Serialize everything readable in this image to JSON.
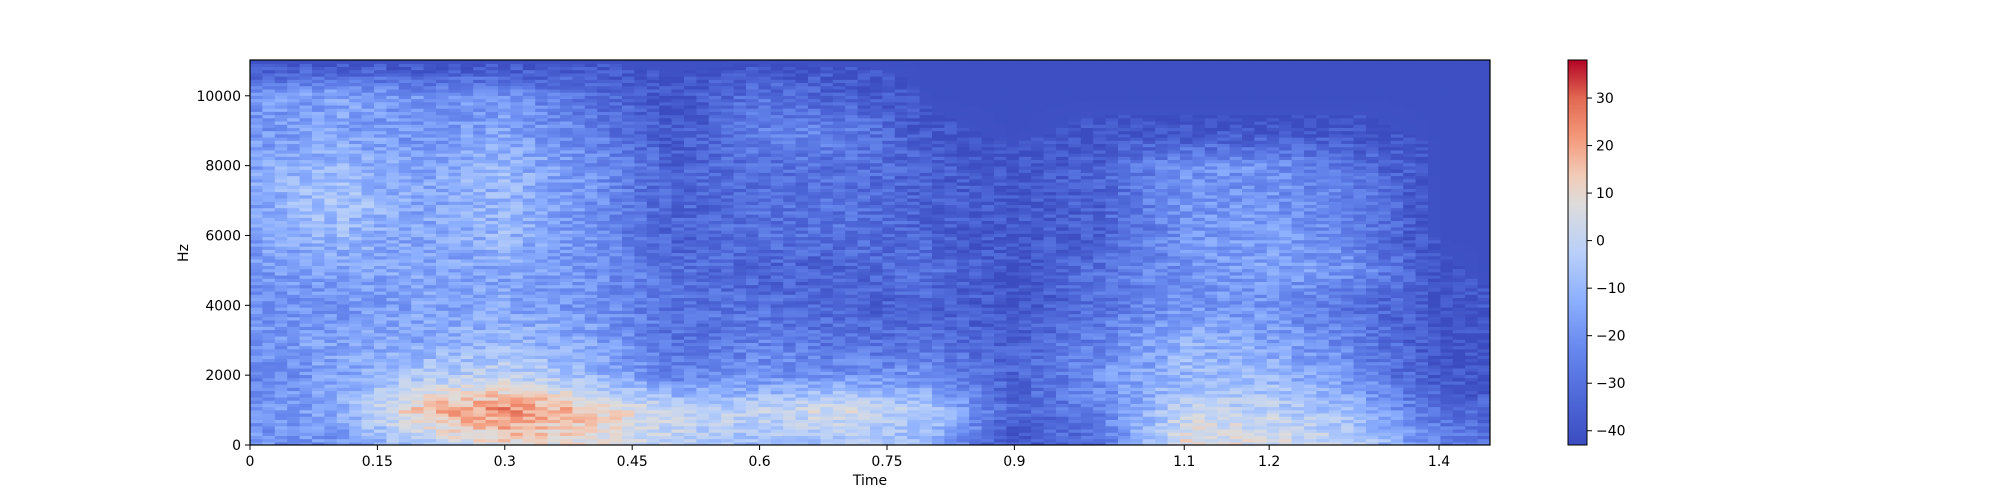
{
  "chart_data": {
    "type": "heatmap",
    "title": "",
    "xlabel": "Time",
    "ylabel": "Hz",
    "xlim": [
      0,
      1.46
    ],
    "ylim": [
      0,
      11025
    ],
    "x_ticks": [
      "0",
      "0.15",
      "0.3",
      "0.45",
      "0.6",
      "0.75",
      "0.9",
      "1.1",
      "1.2",
      "1.4"
    ],
    "y_ticks": [
      "0",
      "2000",
      "4000",
      "6000",
      "8000",
      "10000"
    ],
    "colormap": "coolwarm",
    "colorbar": {
      "range": [
        -43,
        38
      ],
      "ticks": [
        "30",
        "20",
        "10",
        "0",
        "−10",
        "−20",
        "−30",
        "−40"
      ],
      "low_color": "#3b4cc0",
      "mid_color": "#dddddd",
      "high_color": "#b40426"
    },
    "sample_time_centers": [
      0,
      0.1,
      0.2,
      0.3,
      0.4,
      0.5,
      0.6,
      0.7,
      0.8,
      0.9,
      1.0,
      1.1,
      1.2,
      1.3,
      1.4,
      1.46
    ],
    "sample_freq_centers": [
      0,
      1000,
      2000,
      3000,
      4000,
      5000,
      6000,
      7000,
      8000,
      9000,
      10000,
      11000
    ],
    "sample_db": [
      [
        -20,
        -20,
        -5,
        10,
        5,
        0,
        -10,
        -5,
        -10,
        -40,
        -30,
        10,
        5,
        0,
        -25,
        -30
      ],
      [
        -20,
        -15,
        15,
        25,
        15,
        0,
        0,
        5,
        -5,
        -35,
        -25,
        0,
        0,
        -10,
        -30,
        -35
      ],
      [
        -25,
        -15,
        -5,
        0,
        -10,
        -25,
        -20,
        -20,
        -20,
        -35,
        -20,
        -10,
        -10,
        -20,
        -40,
        -40
      ],
      [
        -20,
        -15,
        -15,
        -10,
        -15,
        -30,
        -25,
        -30,
        -30,
        -35,
        -25,
        -10,
        -15,
        -25,
        -40,
        -40
      ],
      [
        -20,
        -20,
        -15,
        -15,
        -20,
        -30,
        -30,
        -35,
        -35,
        -40,
        -30,
        -20,
        -20,
        -30,
        -40,
        -40
      ],
      [
        -20,
        -15,
        -15,
        -15,
        -20,
        -30,
        -35,
        -35,
        -30,
        -40,
        -30,
        -20,
        -15,
        -20,
        -40,
        -42
      ],
      [
        -15,
        -10,
        -15,
        -10,
        -20,
        -35,
        -30,
        -30,
        -35,
        -40,
        -35,
        -20,
        -15,
        -25,
        -42,
        -42
      ],
      [
        -15,
        -5,
        -15,
        -10,
        -20,
        -35,
        -30,
        -30,
        -35,
        -40,
        -35,
        -20,
        -20,
        -25,
        -42,
        -42
      ],
      [
        -15,
        -10,
        -15,
        -10,
        -20,
        -35,
        -30,
        -30,
        -35,
        -40,
        -35,
        -20,
        -20,
        -30,
        -42,
        -42
      ],
      [
        -20,
        -15,
        -20,
        -15,
        -25,
        -40,
        -25,
        -25,
        -40,
        -42,
        -40,
        -40,
        -40,
        -40,
        -42,
        -42
      ],
      [
        -20,
        -15,
        -20,
        -20,
        -30,
        -40,
        -30,
        -35,
        -42,
        -42,
        -42,
        -42,
        -42,
        -42,
        -42,
        -42
      ],
      [
        -42,
        -42,
        -42,
        -42,
        -42,
        -42,
        -42,
        -42,
        -42,
        -42,
        -42,
        -42,
        -42,
        -42,
        -42,
        -42
      ]
    ]
  }
}
